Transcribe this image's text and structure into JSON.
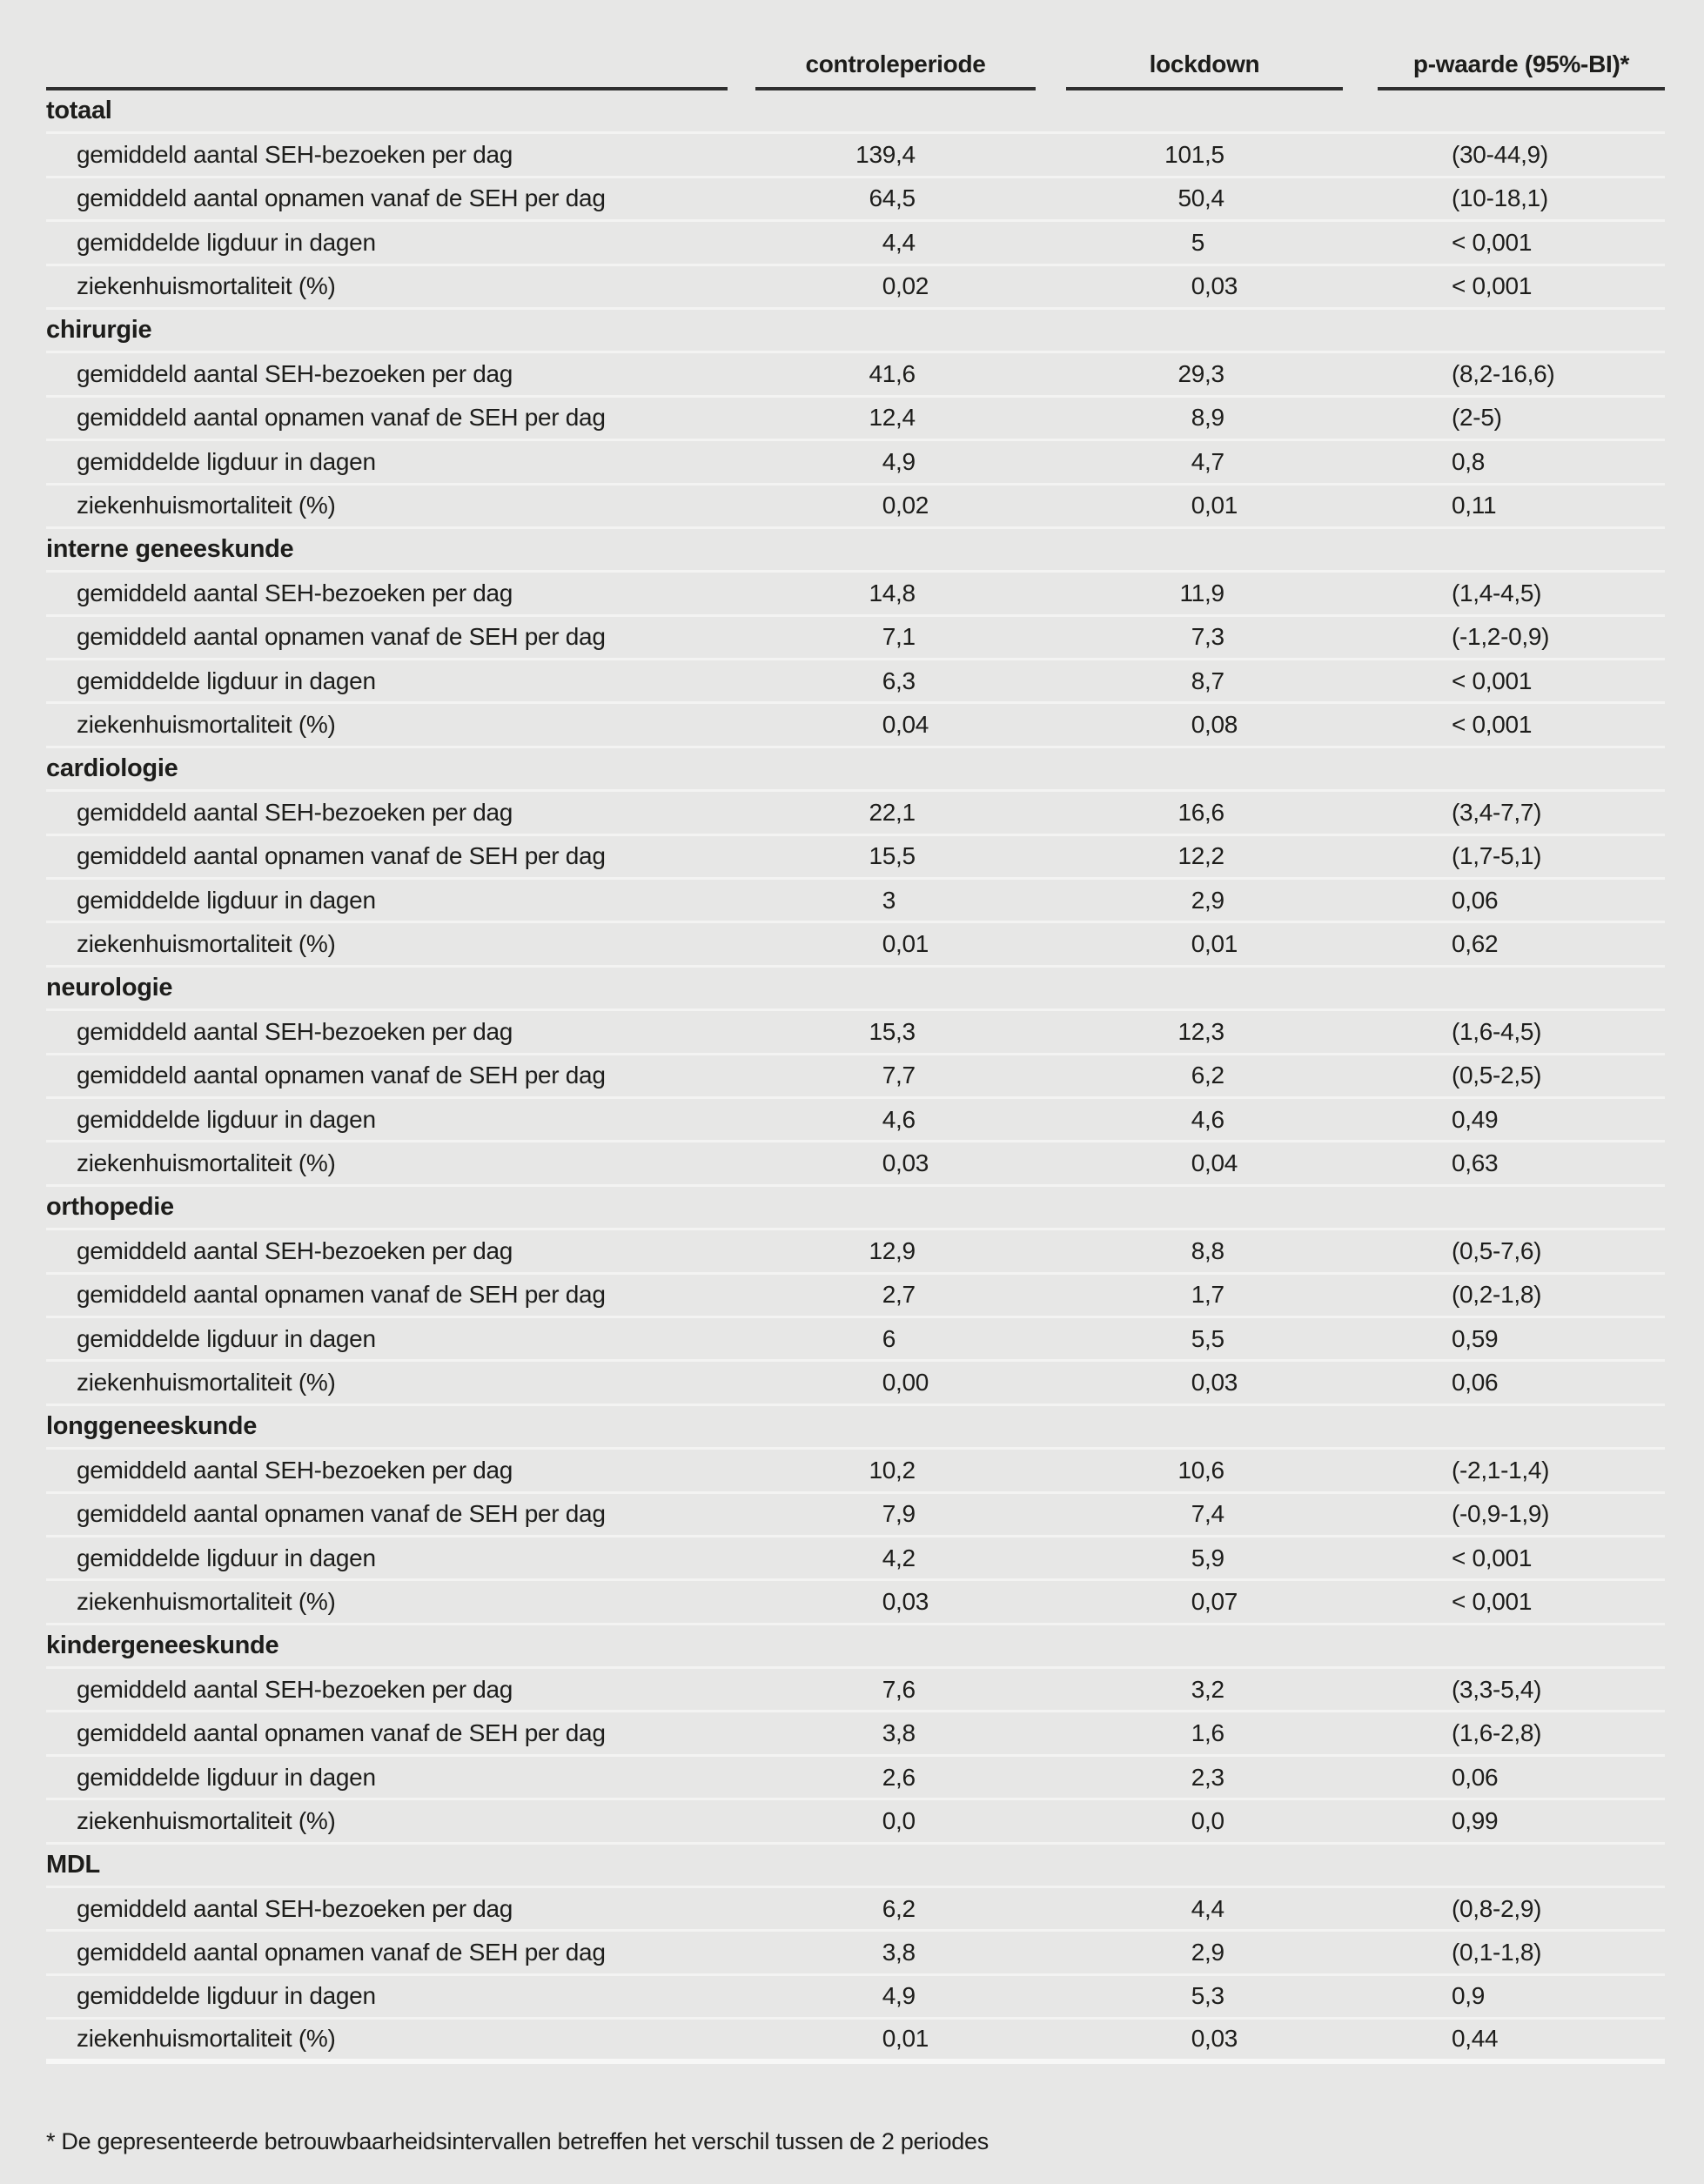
{
  "table": {
    "columns": [
      "controleperiode",
      "lockdown",
      "p-waarde (95%-BI)*"
    ],
    "sections": [
      {
        "name": "totaal",
        "rows": [
          {
            "label": "gemiddeld aantal SEH-bezoeken per dag",
            "values": [
              "139,4",
              "101,5",
              "(30-44,9)"
            ]
          },
          {
            "label": "gemiddeld aantal opnamen vanaf de SEH per dag",
            "values": [
              "64,5",
              "50,4",
              "(10-18,1)"
            ]
          },
          {
            "label": "gemiddelde ligduur in dagen",
            "values": [
              "4,4",
              "5",
              "< 0,001"
            ]
          },
          {
            "label": "ziekenhuismortaliteit (%)",
            "values": [
              "0,02",
              "0,03",
              "< 0,001"
            ]
          }
        ]
      },
      {
        "name": "chirurgie",
        "rows": [
          {
            "label": "gemiddeld aantal SEH-bezoeken per dag",
            "values": [
              "41,6",
              "29,3",
              "(8,2-16,6)"
            ]
          },
          {
            "label": "gemiddeld aantal opnamen vanaf de SEH per dag",
            "values": [
              "12,4",
              "8,9",
              "(2-5)"
            ]
          },
          {
            "label": "gemiddelde ligduur in dagen",
            "values": [
              "4,9",
              "4,7",
              "0,8"
            ]
          },
          {
            "label": "ziekenhuismortaliteit (%)",
            "values": [
              "0,02",
              "0,01",
              "0,11"
            ]
          }
        ]
      },
      {
        "name": "interne geneeskunde",
        "rows": [
          {
            "label": "gemiddeld aantal SEH-bezoeken per dag",
            "values": [
              "14,8",
              "11,9",
              "(1,4-4,5)"
            ]
          },
          {
            "label": "gemiddeld aantal opnamen vanaf de SEH per dag",
            "values": [
              "7,1",
              "7,3",
              "(-1,2-0,9)"
            ]
          },
          {
            "label": "gemiddelde ligduur in dagen",
            "values": [
              "6,3",
              "8,7",
              "< 0,001"
            ]
          },
          {
            "label": "ziekenhuismortaliteit (%)",
            "values": [
              "0,04",
              "0,08",
              "< 0,001"
            ]
          }
        ]
      },
      {
        "name": "cardiologie",
        "rows": [
          {
            "label": "gemiddeld aantal SEH-bezoeken per dag",
            "values": [
              "22,1",
              "16,6",
              "(3,4-7,7)"
            ]
          },
          {
            "label": "gemiddeld aantal opnamen vanaf de SEH per dag",
            "values": [
              "15,5",
              "12,2",
              "(1,7-5,1)"
            ]
          },
          {
            "label": "gemiddelde ligduur in dagen",
            "values": [
              "3",
              "2,9",
              "0,06"
            ]
          },
          {
            "label": "ziekenhuismortaliteit (%)",
            "values": [
              "0,01",
              "0,01",
              "0,62"
            ]
          }
        ]
      },
      {
        "name": "neurologie",
        "rows": [
          {
            "label": "gemiddeld aantal SEH-bezoeken per dag",
            "values": [
              "15,3",
              "12,3",
              "(1,6-4,5)"
            ]
          },
          {
            "label": "gemiddeld aantal opnamen vanaf de SEH per dag",
            "values": [
              "7,7",
              "6,2",
              "(0,5-2,5)"
            ]
          },
          {
            "label": "gemiddelde ligduur in dagen",
            "values": [
              "4,6",
              "4,6",
              "0,49"
            ]
          },
          {
            "label": "ziekenhuismortaliteit (%)",
            "values": [
              "0,03",
              "0,04",
              "0,63"
            ]
          }
        ]
      },
      {
        "name": "orthopedie",
        "rows": [
          {
            "label": "gemiddeld aantal SEH-bezoeken per dag",
            "values": [
              "12,9",
              "8,8",
              "(0,5-7,6)"
            ]
          },
          {
            "label": "gemiddeld aantal opnamen vanaf de SEH per dag",
            "values": [
              "2,7",
              "1,7",
              "(0,2-1,8)"
            ]
          },
          {
            "label": "gemiddelde ligduur in dagen",
            "values": [
              "6",
              "5,5",
              "0,59"
            ]
          },
          {
            "label": "ziekenhuismortaliteit (%)",
            "values": [
              "0,00",
              "0,03",
              "0,06"
            ]
          }
        ]
      },
      {
        "name": "longgeneeskunde",
        "rows": [
          {
            "label": "gemiddeld aantal SEH-bezoeken per dag",
            "values": [
              "10,2",
              "10,6",
              "(-2,1-1,4)"
            ]
          },
          {
            "label": "gemiddeld aantal opnamen vanaf de SEH per dag",
            "values": [
              "7,9",
              "7,4",
              "(-0,9-1,9)"
            ]
          },
          {
            "label": "gemiddelde ligduur in dagen",
            "values": [
              "4,2",
              "5,9",
              "< 0,001"
            ]
          },
          {
            "label": "ziekenhuismortaliteit (%)",
            "values": [
              "0,03",
              "0,07",
              "< 0,001"
            ]
          }
        ]
      },
      {
        "name": "kindergeneeskunde",
        "rows": [
          {
            "label": "gemiddeld aantal SEH-bezoeken per dag",
            "values": [
              "7,6",
              "3,2",
              "(3,3-5,4)"
            ]
          },
          {
            "label": "gemiddeld aantal opnamen vanaf de SEH per dag",
            "values": [
              "3,8",
              "1,6",
              "(1,6-2,8)"
            ]
          },
          {
            "label": "gemiddelde ligduur in dagen",
            "values": [
              "2,6",
              "2,3",
              "0,06"
            ]
          },
          {
            "label": "ziekenhuismortaliteit (%)",
            "values": [
              "0,0",
              "0,0",
              "0,99"
            ]
          }
        ]
      },
      {
        "name": "MDL",
        "rows": [
          {
            "label": "gemiddeld aantal SEH-bezoeken per dag",
            "values": [
              "6,2",
              "4,4",
              "(0,8-2,9)"
            ]
          },
          {
            "label": "gemiddeld aantal opnamen vanaf de SEH per dag",
            "values": [
              "3,8",
              "2,9",
              "(0,1-1,8)"
            ]
          },
          {
            "label": "gemiddelde ligduur in dagen",
            "values": [
              "4,9",
              "5,3",
              "0,9"
            ]
          },
          {
            "label": "ziekenhuismortaliteit (%)",
            "values": [
              "0,01",
              "0,03",
              "0,44"
            ]
          }
        ]
      }
    ],
    "footnote": "* De gepresenteerde betrouwbaarheidsintervallen betreffen het verschil tussen de 2 periodes"
  },
  "colors": {
    "background": "#e7e7e6",
    "row_separator": "#f3f3f2",
    "table_bottom_rule": "#f7f7f6",
    "text": "#1d1d1b",
    "header_rule": "#2f2f2f"
  }
}
